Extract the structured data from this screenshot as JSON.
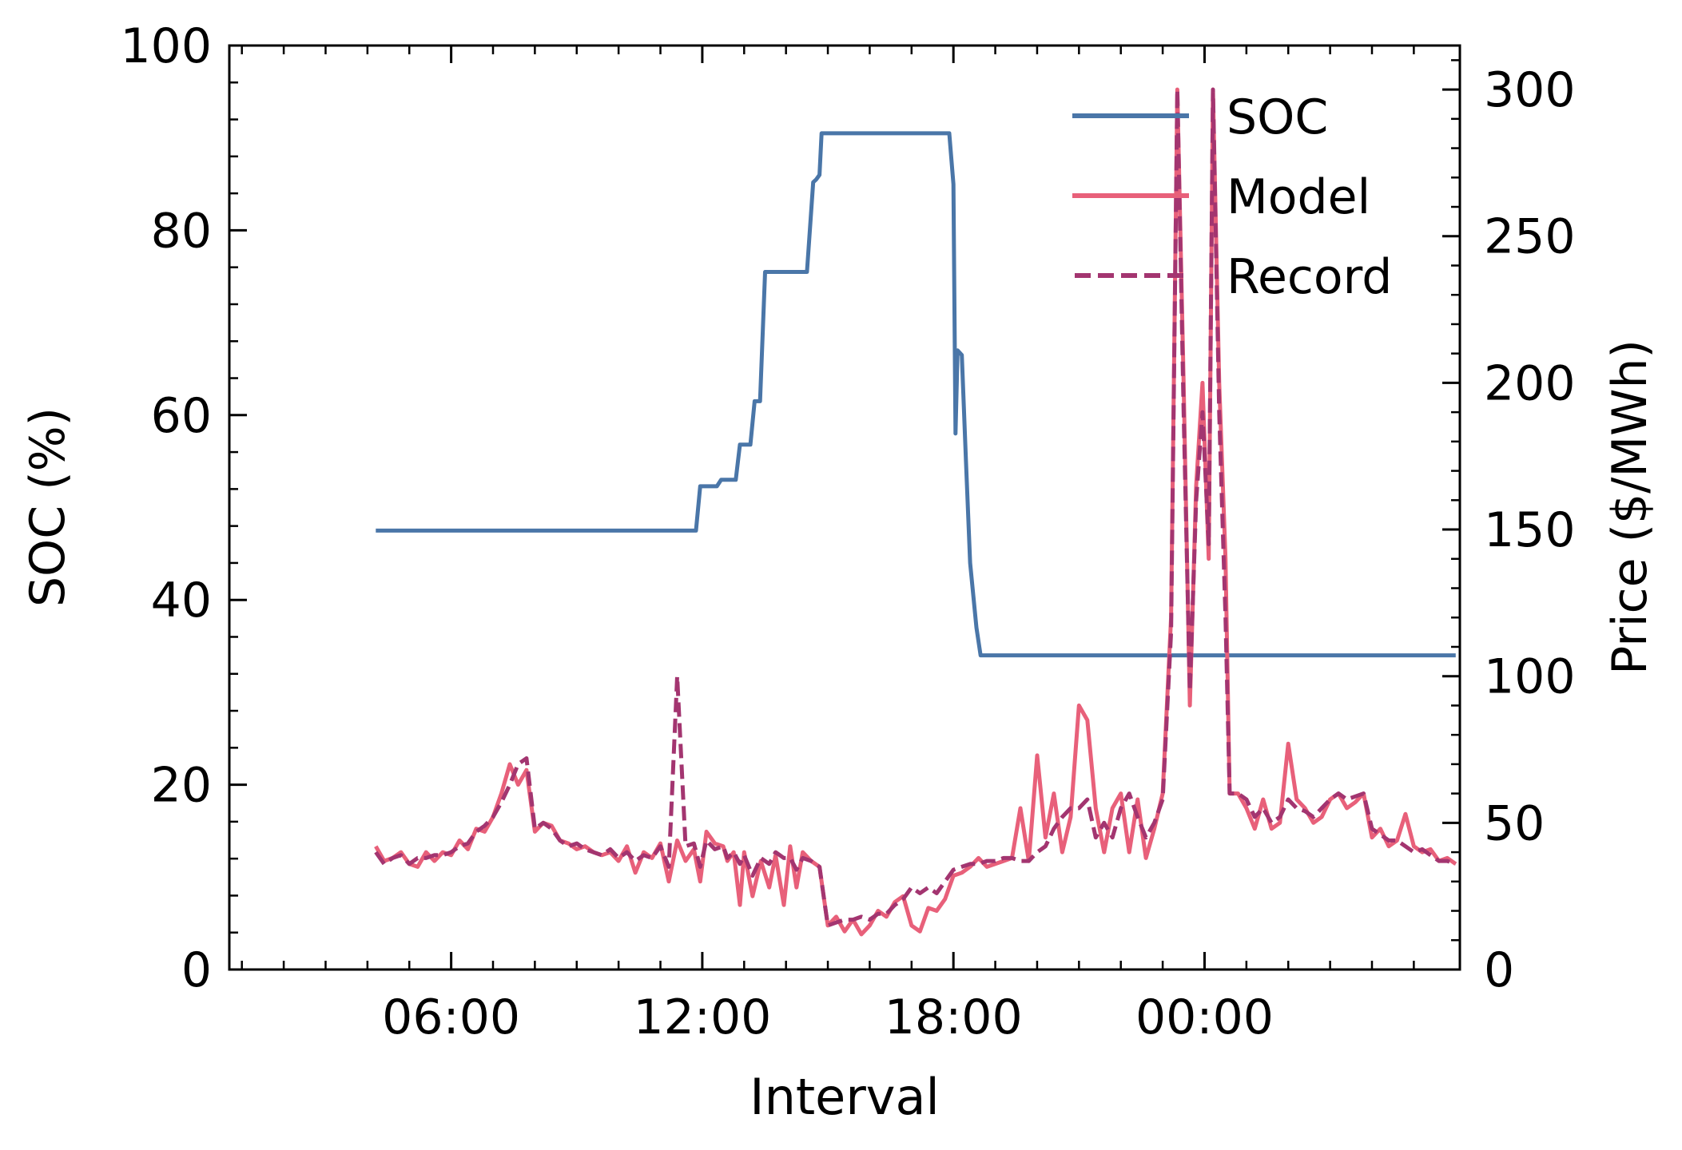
{
  "chart_data": {
    "type": "line",
    "xlabel": "Interval",
    "ylabel_left": "SOC (%)",
    "ylabel_right": "Price ($/MWh)",
    "x_unit": "hours since 00:00 of first day (ticks printed as clock times)",
    "xlim": [
      0.7,
      30.1
    ],
    "ylim_left": [
      0,
      100
    ],
    "ylim_right": [
      0,
      315
    ],
    "x_ticks": [
      {
        "x": 6,
        "label": "06:00"
      },
      {
        "x": 12,
        "label": "12:00"
      },
      {
        "x": 18,
        "label": "18:00"
      },
      {
        "x": 24,
        "label": "00:00"
      }
    ],
    "y_ticks_left": [
      0,
      20,
      40,
      60,
      80,
      100
    ],
    "y_ticks_right": [
      0,
      50,
      100,
      150,
      200,
      250,
      300
    ],
    "legend_position": "top-right",
    "colors": {
      "soc": "#4a76a8",
      "model": "#e8607a",
      "record": "#a33570"
    },
    "series": [
      {
        "name": "SOC",
        "axis": "left",
        "style": "solid",
        "points": [
          [
            4.2,
            47.5
          ],
          [
            11.85,
            47.5
          ],
          [
            11.95,
            52.3
          ],
          [
            12.35,
            52.3
          ],
          [
            12.45,
            53.0
          ],
          [
            12.8,
            53.0
          ],
          [
            12.9,
            56.8
          ],
          [
            13.15,
            56.8
          ],
          [
            13.25,
            61.5
          ],
          [
            13.38,
            61.5
          ],
          [
            13.5,
            75.5
          ],
          [
            14.5,
            75.5
          ],
          [
            14.65,
            85.2
          ],
          [
            14.72,
            85.5
          ],
          [
            14.8,
            86.0
          ],
          [
            14.85,
            90.5
          ],
          [
            17.9,
            90.5
          ],
          [
            18.0,
            85.0
          ],
          [
            18.05,
            58.0
          ],
          [
            18.1,
            67.0
          ],
          [
            18.2,
            66.5
          ],
          [
            18.3,
            55.0
          ],
          [
            18.4,
            44.0
          ],
          [
            18.55,
            37.0
          ],
          [
            18.65,
            34.0
          ],
          [
            30.0,
            34.0
          ]
        ]
      },
      {
        "name": "Model",
        "axis": "right",
        "style": "solid",
        "points": [
          [
            4.2,
            42
          ],
          [
            4.4,
            37
          ],
          [
            4.6,
            38
          ],
          [
            4.8,
            40
          ],
          [
            5.0,
            36
          ],
          [
            5.2,
            35
          ],
          [
            5.4,
            40
          ],
          [
            5.6,
            37
          ],
          [
            5.8,
            40
          ],
          [
            6.0,
            39
          ],
          [
            6.2,
            44
          ],
          [
            6.4,
            41
          ],
          [
            6.6,
            48
          ],
          [
            6.8,
            47
          ],
          [
            7.0,
            52
          ],
          [
            7.2,
            60
          ],
          [
            7.4,
            70
          ],
          [
            7.6,
            63
          ],
          [
            7.8,
            68
          ],
          [
            8.0,
            47
          ],
          [
            8.2,
            50
          ],
          [
            8.4,
            49
          ],
          [
            8.6,
            44
          ],
          [
            8.8,
            43
          ],
          [
            9.0,
            41
          ],
          [
            9.2,
            42
          ],
          [
            9.4,
            40
          ],
          [
            9.6,
            39
          ],
          [
            9.8,
            40
          ],
          [
            10.0,
            37
          ],
          [
            10.2,
            42
          ],
          [
            10.4,
            33
          ],
          [
            10.6,
            40
          ],
          [
            10.8,
            38
          ],
          [
            11.0,
            43
          ],
          [
            11.2,
            30
          ],
          [
            11.4,
            44
          ],
          [
            11.6,
            37
          ],
          [
            11.8,
            41
          ],
          [
            11.95,
            30
          ],
          [
            12.1,
            47
          ],
          [
            12.3,
            43
          ],
          [
            12.5,
            42
          ],
          [
            12.6,
            37
          ],
          [
            12.75,
            40
          ],
          [
            12.9,
            22
          ],
          [
            13.0,
            40
          ],
          [
            13.2,
            25
          ],
          [
            13.4,
            37
          ],
          [
            13.6,
            28
          ],
          [
            13.75,
            39
          ],
          [
            13.95,
            22
          ],
          [
            14.1,
            42
          ],
          [
            14.25,
            28
          ],
          [
            14.4,
            40
          ],
          [
            14.6,
            37
          ],
          [
            14.8,
            35
          ],
          [
            15.0,
            15
          ],
          [
            15.2,
            18
          ],
          [
            15.4,
            13
          ],
          [
            15.6,
            17
          ],
          [
            15.8,
            12
          ],
          [
            16.0,
            15
          ],
          [
            16.2,
            20
          ],
          [
            16.4,
            18
          ],
          [
            16.6,
            23
          ],
          [
            16.8,
            25
          ],
          [
            17.0,
            15
          ],
          [
            17.2,
            13
          ],
          [
            17.4,
            21
          ],
          [
            17.6,
            20
          ],
          [
            17.8,
            24
          ],
          [
            18.0,
            32
          ],
          [
            18.2,
            33
          ],
          [
            18.4,
            35
          ],
          [
            18.6,
            38
          ],
          [
            18.8,
            35
          ],
          [
            19.0,
            36
          ],
          [
            19.2,
            37
          ],
          [
            19.4,
            38
          ],
          [
            19.6,
            55
          ],
          [
            19.8,
            37
          ],
          [
            20.0,
            73
          ],
          [
            20.2,
            45
          ],
          [
            20.4,
            60
          ],
          [
            20.6,
            40
          ],
          [
            20.8,
            52
          ],
          [
            21.0,
            90
          ],
          [
            21.2,
            85
          ],
          [
            21.4,
            55
          ],
          [
            21.6,
            40
          ],
          [
            21.8,
            55
          ],
          [
            22.0,
            60
          ],
          [
            22.2,
            40
          ],
          [
            22.4,
            58
          ],
          [
            22.6,
            38
          ],
          [
            22.8,
            48
          ],
          [
            23.0,
            60
          ],
          [
            23.2,
            120
          ],
          [
            23.35,
            300
          ],
          [
            23.5,
            200
          ],
          [
            23.65,
            90
          ],
          [
            23.8,
            165
          ],
          [
            23.95,
            200
          ],
          [
            24.1,
            140
          ],
          [
            24.2,
            300
          ],
          [
            24.35,
            200
          ],
          [
            24.5,
            140
          ],
          [
            24.6,
            60
          ],
          [
            24.8,
            60
          ],
          [
            25.0,
            55
          ],
          [
            25.2,
            48
          ],
          [
            25.4,
            58
          ],
          [
            25.6,
            48
          ],
          [
            25.8,
            50
          ],
          [
            26.0,
            77
          ],
          [
            26.2,
            58
          ],
          [
            26.4,
            55
          ],
          [
            26.6,
            50
          ],
          [
            26.8,
            52
          ],
          [
            27.0,
            58
          ],
          [
            27.2,
            60
          ],
          [
            27.4,
            55
          ],
          [
            27.6,
            57
          ],
          [
            27.8,
            60
          ],
          [
            28.0,
            45
          ],
          [
            28.2,
            48
          ],
          [
            28.4,
            42
          ],
          [
            28.6,
            44
          ],
          [
            28.8,
            53
          ],
          [
            29.0,
            42
          ],
          [
            29.2,
            40
          ],
          [
            29.4,
            41
          ],
          [
            29.6,
            37
          ],
          [
            29.8,
            38
          ],
          [
            30.0,
            36
          ]
        ]
      },
      {
        "name": "Record",
        "axis": "right",
        "style": "dashed",
        "points": [
          [
            4.2,
            40
          ],
          [
            4.4,
            36
          ],
          [
            4.6,
            38
          ],
          [
            4.8,
            39
          ],
          [
            5.0,
            36
          ],
          [
            5.2,
            38
          ],
          [
            5.4,
            38
          ],
          [
            5.6,
            39
          ],
          [
            5.8,
            39
          ],
          [
            6.0,
            40
          ],
          [
            6.2,
            42
          ],
          [
            6.4,
            43
          ],
          [
            6.6,
            47
          ],
          [
            6.8,
            49
          ],
          [
            7.0,
            52
          ],
          [
            7.2,
            57
          ],
          [
            7.4,
            63
          ],
          [
            7.6,
            70
          ],
          [
            7.8,
            72
          ],
          [
            8.0,
            48
          ],
          [
            8.2,
            50
          ],
          [
            8.4,
            48
          ],
          [
            8.6,
            44
          ],
          [
            8.8,
            42
          ],
          [
            9.0,
            43
          ],
          [
            9.2,
            41
          ],
          [
            9.4,
            40
          ],
          [
            9.6,
            39
          ],
          [
            9.8,
            41
          ],
          [
            10.0,
            38
          ],
          [
            10.2,
            40
          ],
          [
            10.4,
            37
          ],
          [
            10.6,
            39
          ],
          [
            10.8,
            38
          ],
          [
            11.0,
            42
          ],
          [
            11.2,
            35
          ],
          [
            11.4,
            100
          ],
          [
            11.6,
            42
          ],
          [
            11.8,
            43
          ],
          [
            11.95,
            35
          ],
          [
            12.1,
            44
          ],
          [
            12.3,
            41
          ],
          [
            12.5,
            42
          ],
          [
            12.6,
            38
          ],
          [
            12.75,
            40
          ],
          [
            12.9,
            36
          ],
          [
            13.0,
            39
          ],
          [
            13.2,
            32
          ],
          [
            13.4,
            38
          ],
          [
            13.6,
            36
          ],
          [
            13.75,
            40
          ],
          [
            13.95,
            38
          ],
          [
            14.1,
            38
          ],
          [
            14.25,
            34
          ],
          [
            14.4,
            38
          ],
          [
            14.6,
            37
          ],
          [
            14.8,
            35
          ],
          [
            15.0,
            15
          ],
          [
            15.2,
            16
          ],
          [
            15.4,
            17
          ],
          [
            15.6,
            17
          ],
          [
            15.8,
            18
          ],
          [
            16.0,
            17
          ],
          [
            16.2,
            19
          ],
          [
            16.4,
            19
          ],
          [
            16.6,
            22
          ],
          [
            16.8,
            24
          ],
          [
            17.0,
            28
          ],
          [
            17.2,
            26
          ],
          [
            17.4,
            28
          ],
          [
            17.6,
            26
          ],
          [
            17.8,
            30
          ],
          [
            18.0,
            34
          ],
          [
            18.2,
            35
          ],
          [
            18.4,
            36
          ],
          [
            18.6,
            36
          ],
          [
            18.8,
            37
          ],
          [
            19.0,
            37
          ],
          [
            19.2,
            38
          ],
          [
            19.4,
            38
          ],
          [
            19.6,
            37
          ],
          [
            19.8,
            37
          ],
          [
            20.0,
            40
          ],
          [
            20.2,
            42
          ],
          [
            20.4,
            48
          ],
          [
            20.6,
            52
          ],
          [
            20.8,
            55
          ],
          [
            21.0,
            55
          ],
          [
            21.2,
            58
          ],
          [
            21.4,
            45
          ],
          [
            21.6,
            50
          ],
          [
            21.8,
            45
          ],
          [
            22.0,
            55
          ],
          [
            22.2,
            60
          ],
          [
            22.4,
            52
          ],
          [
            22.6,
            45
          ],
          [
            22.8,
            50
          ],
          [
            23.0,
            58
          ],
          [
            23.2,
            115
          ],
          [
            23.35,
            300
          ],
          [
            23.5,
            190
          ],
          [
            23.65,
            95
          ],
          [
            23.8,
            160
          ],
          [
            23.95,
            190
          ],
          [
            24.1,
            145
          ],
          [
            24.2,
            300
          ],
          [
            24.35,
            190
          ],
          [
            24.5,
            120
          ],
          [
            24.6,
            60
          ],
          [
            24.8,
            60
          ],
          [
            25.0,
            58
          ],
          [
            25.2,
            52
          ],
          [
            25.4,
            55
          ],
          [
            25.6,
            50
          ],
          [
            25.8,
            52
          ],
          [
            26.0,
            58
          ],
          [
            26.2,
            55
          ],
          [
            26.4,
            54
          ],
          [
            26.6,
            52
          ],
          [
            26.8,
            55
          ],
          [
            27.0,
            58
          ],
          [
            27.2,
            60
          ],
          [
            27.4,
            58
          ],
          [
            27.6,
            59
          ],
          [
            27.8,
            60
          ],
          [
            28.0,
            48
          ],
          [
            28.2,
            46
          ],
          [
            28.4,
            44
          ],
          [
            28.6,
            44
          ],
          [
            28.8,
            42
          ],
          [
            29.0,
            40
          ],
          [
            29.2,
            41
          ],
          [
            29.4,
            39
          ],
          [
            29.6,
            37
          ],
          [
            29.8,
            37
          ],
          [
            30.0,
            36
          ]
        ]
      }
    ]
  }
}
